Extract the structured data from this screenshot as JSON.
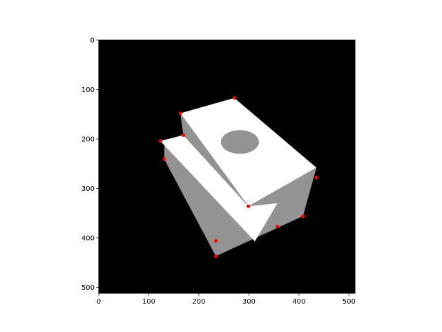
{
  "chart_data": {
    "type": "scatter",
    "title": "",
    "xlabel": "",
    "ylabel": "",
    "xlim": [
      0,
      512
    ],
    "ylim": [
      512,
      0
    ],
    "y_inverted": true,
    "grid": false,
    "x_ticks": [
      0,
      100,
      200,
      300,
      400,
      500
    ],
    "y_ticks": [
      0,
      100,
      200,
      300,
      400,
      500
    ],
    "background_image": {
      "description_colors": {
        "background": "#000000",
        "face_light": "#ffffff",
        "face_shadow": "#939393",
        "hole": "#939393"
      },
      "faces": [
        {
          "name": "top-face",
          "color": "#ffffff",
          "points": [
            [
              163,
              148
            ],
            [
              271,
              117
            ],
            [
              435,
              258
            ],
            [
              299,
              336
            ]
          ]
        },
        {
          "name": "front-shadow-face",
          "color": "#939393",
          "points": [
            [
              299,
              336
            ],
            [
              435,
              258
            ],
            [
              408,
              356
            ],
            [
              234,
              437
            ],
            [
              131,
              241
            ],
            [
              131,
              200
            ]
          ]
        },
        {
          "name": "step-face",
          "color": "#ffffff",
          "points": [
            [
              123,
              204
            ],
            [
              169,
              192
            ],
            [
              299,
              336
            ],
            [
              357,
              330
            ],
            [
              312,
              407
            ]
          ]
        },
        {
          "name": "step-riser",
          "color": "#939393",
          "points": [
            [
              163,
              148
            ],
            [
              169,
              192
            ],
            [
              299,
              336
            ]
          ]
        }
      ],
      "hole": {
        "cx": 282,
        "cy": 206,
        "rx": 38,
        "ry": 24,
        "color": "#939393"
      }
    },
    "series": [
      {
        "marker_color": "#ff0000",
        "x": [
          271,
          163,
          169,
          123,
          131,
          435,
          299,
          357,
          408,
          234,
          234
        ],
        "y": [
          117,
          148,
          192,
          204,
          241,
          278,
          336,
          377,
          356,
          406,
          437
        ]
      }
    ]
  }
}
